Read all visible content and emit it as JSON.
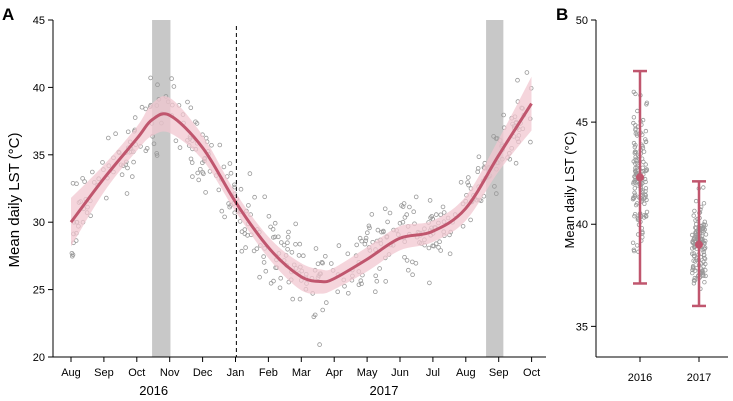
{
  "chart_data": [
    {
      "panel": "A",
      "type": "scatter+line",
      "ylabel": "Mean daily LST (°C)",
      "xlabel": "",
      "ylim": [
        20,
        45
      ],
      "yticks": [
        20,
        25,
        30,
        35,
        40,
        45
      ],
      "x_start": "2016-08",
      "x_end": "2017-10",
      "month_ticks": [
        "Aug",
        "Sep",
        "Oct",
        "Nov",
        "Dec",
        "Jan",
        "Feb",
        "Mar",
        "Apr",
        "May",
        "Jun",
        "Jul",
        "Aug",
        "Sep",
        "Oct"
      ],
      "year_labels": [
        "2016",
        "2017"
      ],
      "year_divider": "2017-01",
      "shaded_periods": [
        [
          "2016-10-15",
          "2016-11-01"
        ],
        [
          "2017-08-20",
          "2017-09-05"
        ]
      ],
      "colors": {
        "line": "#c0566e",
        "band": "#f2c7d0",
        "points": "#999999",
        "shade": "#c8c8c8"
      },
      "smooth": {
        "x": [
          "2016-08-01",
          "2016-09-01",
          "2016-10-01",
          "2016-10-15",
          "2016-11-01",
          "2016-12-01",
          "2017-01-01",
          "2017-02-01",
          "2017-03-01",
          "2017-03-20",
          "2017-04-01",
          "2017-05-01",
          "2017-06-01",
          "2017-07-01",
          "2017-08-01",
          "2017-09-01",
          "2017-10-01"
        ],
        "y": [
          30.0,
          33.3,
          36.2,
          37.6,
          37.9,
          35.5,
          31.4,
          28.0,
          26.0,
          25.6,
          25.8,
          27.2,
          28.8,
          29.3,
          31.0,
          35.0,
          38.8
        ],
        "lower": [
          28.2,
          32.3,
          35.3,
          36.4,
          36.6,
          34.6,
          30.7,
          27.2,
          25.0,
          24.7,
          25.0,
          26.3,
          27.9,
          28.5,
          30.1,
          33.8,
          36.8
        ],
        "upper": [
          31.8,
          34.3,
          37.1,
          38.8,
          39.2,
          36.4,
          32.1,
          28.8,
          27.0,
          26.5,
          26.6,
          28.1,
          29.7,
          30.1,
          31.9,
          36.2,
          40.8
        ]
      }
    },
    {
      "panel": "B",
      "type": "dotplot+errorbar",
      "ylabel": "Mean daily LST (°C)",
      "ylim": [
        33.5,
        50
      ],
      "yticks": [
        35,
        40,
        45,
        50
      ],
      "categories": [
        "2016",
        "2017"
      ],
      "mean": [
        42.3,
        39.0
      ],
      "lower": [
        37.1,
        36.0
      ],
      "upper": [
        47.5,
        42.1
      ],
      "spread_min": [
        34.8,
        33.6
      ],
      "spread_max": [
        49.0,
        44.2
      ],
      "colors": {
        "bar": "#c0566e",
        "points": "#999999"
      }
    }
  ]
}
